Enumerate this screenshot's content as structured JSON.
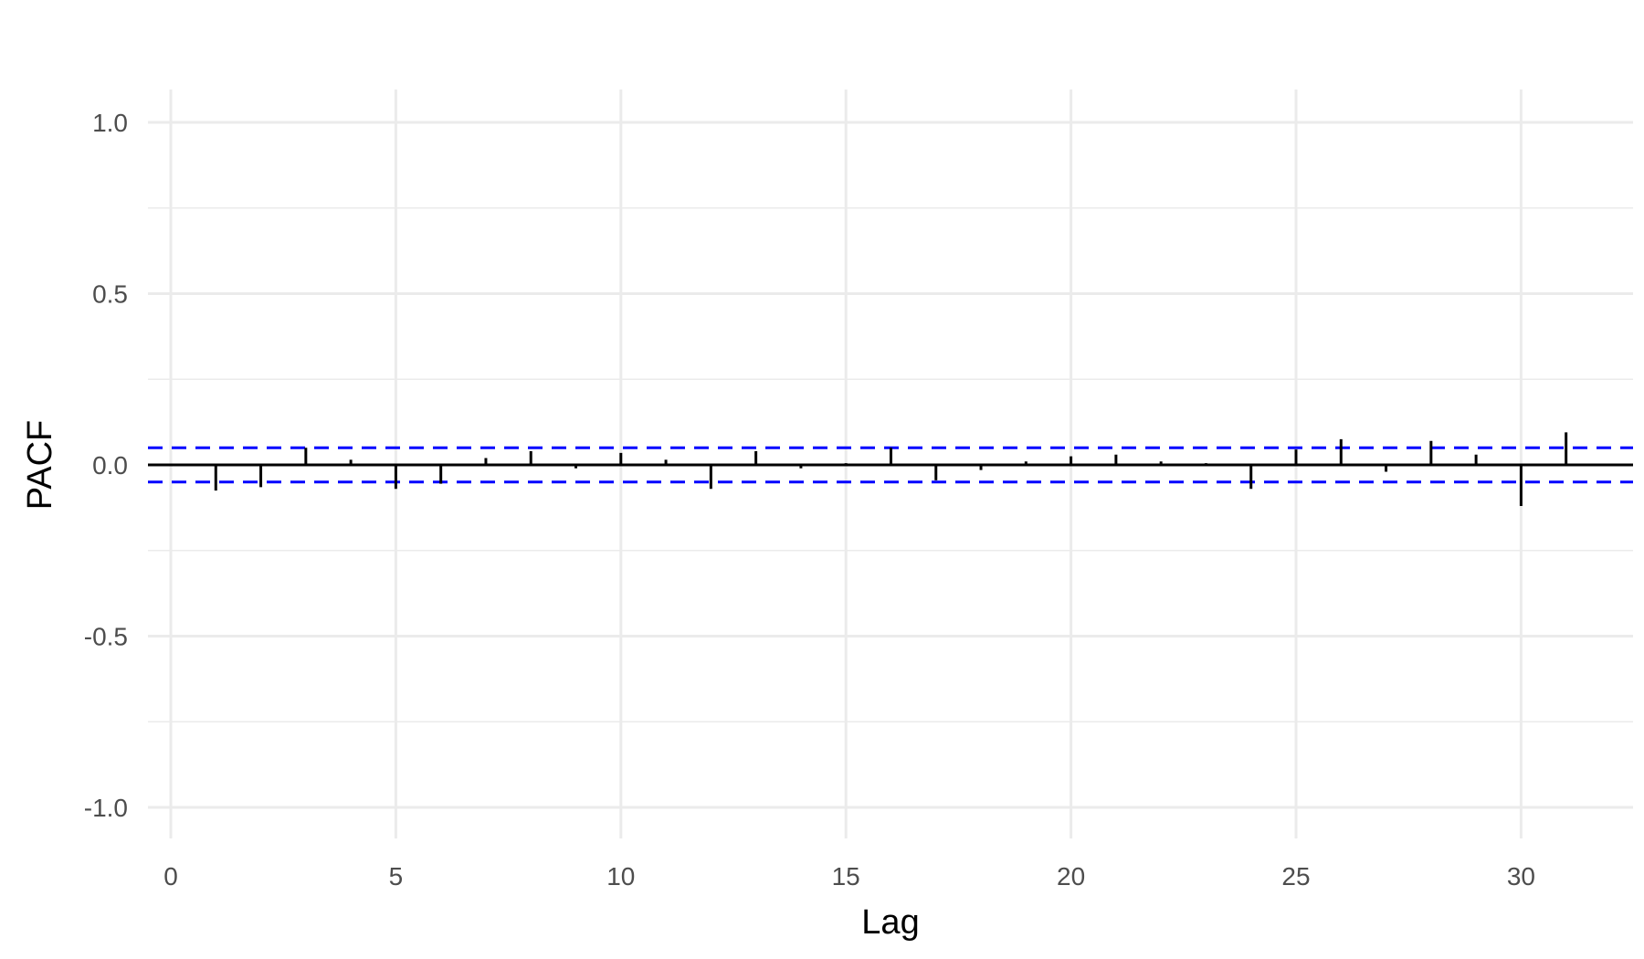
{
  "chart_data": {
    "type": "bar",
    "title": "",
    "xlabel": "Lag",
    "ylabel": "PACF",
    "xlim": [
      -0.5,
      32.5
    ],
    "ylim": [
      -1.05,
      1.05
    ],
    "x_ticks": [
      0,
      5,
      10,
      15,
      20,
      25,
      30
    ],
    "x_tick_labels": [
      "0",
      "5",
      "10",
      "15",
      "20",
      "25",
      "30"
    ],
    "y_ticks": [
      1.0,
      0.5,
      0.0,
      -0.5,
      -1.0
    ],
    "y_tick_labels": [
      "1.0",
      "0.5",
      "0.0",
      "-0.5",
      "-1.0"
    ],
    "y_minor_ticks": [
      0.75,
      0.25,
      -0.25,
      -0.75
    ],
    "x_minor_ticks": [],
    "confidence_bounds": [
      0.05,
      -0.05
    ],
    "lags": [
      1,
      2,
      3,
      4,
      5,
      6,
      7,
      8,
      9,
      10,
      11,
      12,
      13,
      14,
      15,
      16,
      17,
      18,
      19,
      20,
      21,
      22,
      23,
      24,
      25,
      26,
      27,
      28,
      29,
      30,
      31
    ],
    "values": [
      -0.075,
      -0.065,
      0.05,
      0.015,
      -0.07,
      -0.055,
      0.02,
      0.04,
      -0.01,
      0.035,
      0.015,
      -0.07,
      0.04,
      -0.01,
      0.005,
      0.05,
      -0.045,
      -0.015,
      0.01,
      0.025,
      0.03,
      0.01,
      0.005,
      -0.07,
      0.045,
      0.075,
      -0.02,
      0.07,
      0.03,
      -0.12,
      0.095
    ],
    "colors": {
      "bars": "#000000",
      "zero_line": "#000000",
      "confidence": "#0000ff",
      "grid": "#ebebeb"
    }
  }
}
